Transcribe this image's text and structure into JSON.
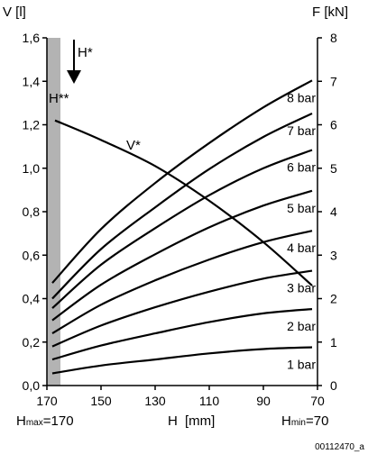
{
  "chart_data": {
    "type": "line",
    "x_axis": {
      "label_name": "H",
      "label_unit": "[mm]",
      "range": [
        170,
        70
      ],
      "ticks": [
        "170",
        "150",
        "130",
        "110",
        "90",
        "70"
      ],
      "tick_values": [
        170,
        150,
        130,
        110,
        90,
        70
      ]
    },
    "y_left": {
      "label": "V [l]",
      "range": [
        0,
        1.6
      ],
      "ticks": [
        "0,0",
        "0,2",
        "0,4",
        "0,6",
        "0,8",
        "1,0",
        "1,2",
        "1,4",
        "1,6"
      ],
      "tick_values": [
        0,
        0.2,
        0.4,
        0.6,
        0.8,
        1.0,
        1.2,
        1.4,
        1.6
      ]
    },
    "y_right": {
      "label": "F [kN]",
      "range": [
        0,
        8
      ],
      "ticks": [
        "0",
        "1",
        "2",
        "3",
        "4",
        "5",
        "6",
        "7",
        "8"
      ],
      "tick_values": [
        0,
        1,
        2,
        3,
        4,
        5,
        6,
        7,
        8
      ]
    },
    "grid": false,
    "shaded_band": {
      "x_from": 170,
      "x_to": 165,
      "color": "#b3b3b3"
    },
    "series_F": [
      {
        "name": "1 bar",
        "axis": "right",
        "x": [
          168,
          150,
          130,
          110,
          90,
          72
        ],
        "y": [
          0.28,
          0.46,
          0.6,
          0.74,
          0.84,
          0.88
        ]
      },
      {
        "name": "2 bar",
        "axis": "right",
        "x": [
          168,
          150,
          130,
          110,
          90,
          72
        ],
        "y": [
          0.6,
          0.92,
          1.2,
          1.46,
          1.66,
          1.76
        ]
      },
      {
        "name": "3 bar",
        "axis": "right",
        "x": [
          168,
          150,
          130,
          110,
          90,
          72
        ],
        "y": [
          0.9,
          1.38,
          1.8,
          2.16,
          2.46,
          2.64
        ]
      },
      {
        "name": "4 bar",
        "axis": "right",
        "x": [
          168,
          150,
          130,
          110,
          90,
          72
        ],
        "y": [
          1.2,
          1.86,
          2.42,
          2.9,
          3.3,
          3.56
        ]
      },
      {
        "name": "5 bar",
        "axis": "right",
        "x": [
          168,
          150,
          130,
          110,
          90,
          72
        ],
        "y": [
          1.5,
          2.32,
          3.02,
          3.64,
          4.14,
          4.48
        ]
      },
      {
        "name": "6 bar",
        "axis": "right",
        "x": [
          168,
          150,
          130,
          110,
          90,
          72
        ],
        "y": [
          1.78,
          2.78,
          3.62,
          4.38,
          5.0,
          5.42
        ]
      },
      {
        "name": "7 bar",
        "axis": "right",
        "x": [
          168,
          150,
          130,
          110,
          90,
          72
        ],
        "y": [
          2.0,
          3.14,
          4.1,
          4.98,
          5.72,
          6.26
        ]
      },
      {
        "name": "8 bar",
        "axis": "right",
        "x": [
          168,
          150,
          130,
          110,
          90,
          72
        ],
        "y": [
          2.36,
          3.6,
          4.66,
          5.58,
          6.4,
          7.02
        ]
      }
    ],
    "series_V": {
      "name": "V*",
      "axis": "left",
      "x": [
        167,
        150,
        130,
        110,
        90,
        72
      ],
      "y": [
        1.22,
        1.13,
        1.01,
        0.85,
        0.66,
        0.46
      ]
    },
    "annotations": {
      "h_star": "H*",
      "h_star_star": "H**",
      "v_star": "V*"
    },
    "footer": {
      "h_label": "H",
      "h_unit": "[mm]",
      "hmax_prefix": "H",
      "hmax_sub": "max",
      "hmax_value": "=170",
      "hmin_prefix": "H",
      "hmin_sub": "min",
      "hmin_value": "=70",
      "code": "00112470_a"
    }
  }
}
